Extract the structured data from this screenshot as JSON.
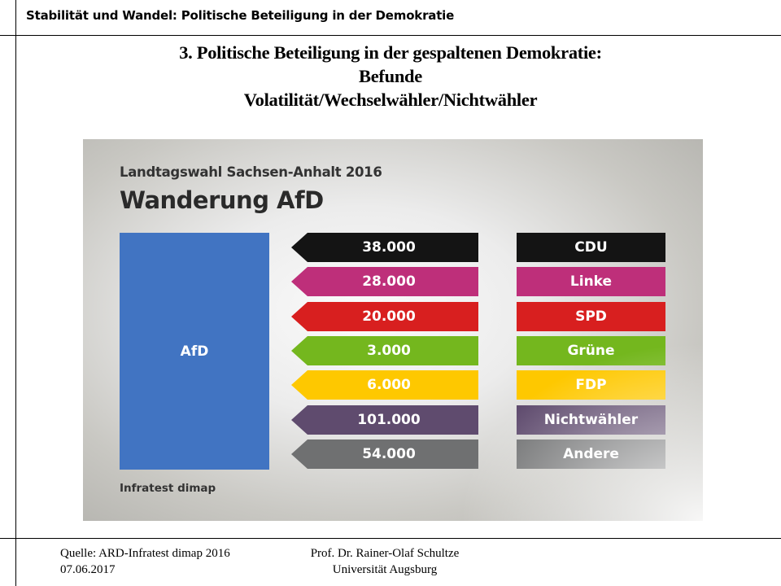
{
  "header": {
    "course_title": "Stabilität und Wandel: Politische Beteiligung in der Demokratie"
  },
  "slide": {
    "title_lines": [
      "3. Politische Beteiligung in der gespaltenen Demokratie:",
      "Befunde",
      "Volatilität/Wechselwähler/Nichtwähler"
    ]
  },
  "graphic": {
    "subtitle": "Landtagswahl Sachsen-Anhalt 2016",
    "title": "Wanderung AfD",
    "target_label": "AfD",
    "target_color": "#4174c2",
    "source": "Infratest dimap"
  },
  "chart_data": {
    "type": "bar",
    "title": "Wanderung AfD",
    "subtitle": "Landtagswahl Sachsen-Anhalt 2016",
    "description": "Voter migration to AfD by origin party (arrows pointing toward AfD)",
    "target": "AfD",
    "categories": [
      "CDU",
      "Linke",
      "SPD",
      "Grüne",
      "FDP",
      "Nichtwähler",
      "Andere"
    ],
    "values": [
      38000,
      28000,
      20000,
      3000,
      6000,
      101000,
      54000
    ],
    "value_labels": [
      "38.000",
      "28.000",
      "20.000",
      "3.000",
      "6.000",
      "101.000",
      "54.000"
    ],
    "colors": [
      "#141414",
      "#be2f7a",
      "#d81f1f",
      "#74b71e",
      "#fec800",
      "#5f4b6e",
      "#6f7071"
    ],
    "xlabel": "",
    "ylabel": "",
    "source": "Infratest dimap",
    "grid": false,
    "legend": "none"
  },
  "footer": {
    "source": "Quelle: ARD-Infratest dimap 2016",
    "date": "07.06.2017",
    "author": "Prof. Dr. Rainer-Olaf Schultze",
    "institution": "Universität Augsburg"
  }
}
